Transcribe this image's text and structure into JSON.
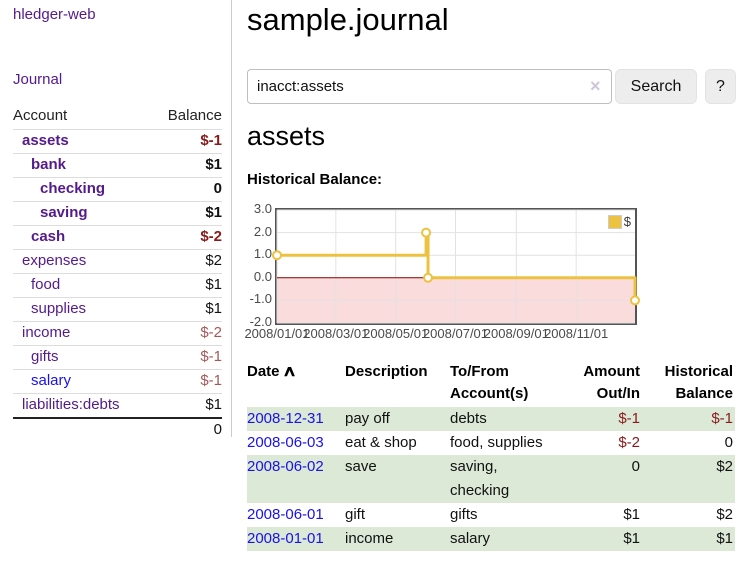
{
  "app": {
    "brand": "hledger-web",
    "nav_journal": "Journal"
  },
  "colors": {
    "link_purple": "#551a8b",
    "link_blue": "#1a12e8",
    "negative_strong": "#8b1a1a",
    "negative_soft": "#a85757",
    "row_green": "#dbe9d6",
    "chart_line": "#edc240",
    "chart_negative_fill": "#fbdcdc",
    "chart_zero_line": "#8b0000"
  },
  "sidebar": {
    "header": {
      "account": "Account",
      "balance": "Balance"
    },
    "accounts": [
      {
        "name": "assets",
        "indent": 1,
        "bold": true,
        "balance": "$-1",
        "neg": "strong",
        "link_color": "purple"
      },
      {
        "name": "bank",
        "indent": 2,
        "bold": true,
        "balance": "$1",
        "neg": "none",
        "link_color": "purple"
      },
      {
        "name": "checking",
        "indent": 3,
        "bold": true,
        "balance": "0",
        "neg": "none",
        "link_color": "purple"
      },
      {
        "name": "saving",
        "indent": 3,
        "bold": true,
        "balance": "$1",
        "neg": "none",
        "link_color": "purple"
      },
      {
        "name": "cash",
        "indent": 2,
        "bold": true,
        "balance": "$-2",
        "neg": "strong",
        "link_color": "purple"
      },
      {
        "name": "expenses",
        "indent": 1,
        "bold": false,
        "balance": "$2",
        "neg": "none",
        "link_color": "purple"
      },
      {
        "name": "food",
        "indent": 2,
        "bold": false,
        "balance": "$1",
        "neg": "none",
        "link_color": "purple"
      },
      {
        "name": "supplies",
        "indent": 2,
        "bold": false,
        "balance": "$1",
        "neg": "none",
        "link_color": "purple"
      },
      {
        "name": "income",
        "indent": 1,
        "bold": false,
        "balance": "$-2",
        "neg": "soft",
        "link_color": "purple"
      },
      {
        "name": "gifts",
        "indent": 2,
        "bold": false,
        "balance": "$-1",
        "neg": "soft",
        "link_color": "purple"
      },
      {
        "name": "salary",
        "indent": 2,
        "bold": false,
        "balance": "$-1",
        "neg": "soft",
        "link_color": "blue"
      },
      {
        "name": "liabilities:debts",
        "indent": 1,
        "bold": false,
        "balance": "$1",
        "neg": "none",
        "link_color": "purple"
      }
    ],
    "total": "0"
  },
  "header": {
    "title": "sample.journal"
  },
  "search": {
    "value": "inacct:assets",
    "clear_icon": "×",
    "button": "Search",
    "help_button": "?"
  },
  "account_page": {
    "title": "assets",
    "chart_label": "Historical Balance:"
  },
  "chart_data": {
    "type": "line",
    "title": "Historical Balance",
    "step": true,
    "series": [
      {
        "name": "$",
        "color": "#edc240",
        "points": [
          [
            "2008-01-01",
            1
          ],
          [
            "2008-06-01",
            2
          ],
          [
            "2008-06-03",
            0
          ],
          [
            "2008-12-31",
            -1
          ]
        ]
      }
    ],
    "xlim": [
      "2008-01-01",
      "2008-12-31"
    ],
    "ylim": [
      -2,
      3
    ],
    "y_ticks": [
      3.0,
      2.0,
      1.0,
      0.0,
      -1.0,
      -2.0
    ],
    "y_tick_labels": [
      "3.0",
      "2.0",
      "1.0",
      "0.0",
      "-1.0",
      "-2.0"
    ],
    "x_ticks": [
      "2008-01-01",
      "2008-03-01",
      "2008-05-01",
      "2008-07-01",
      "2008-09-01",
      "2008-11-01"
    ],
    "x_tick_labels": [
      "2008/01/01",
      "2008/03/01",
      "2008/05/01",
      "2008/07/01",
      "2008/09/01",
      "2008/11/01"
    ],
    "legend": [
      "$"
    ],
    "legend_position": "top-right",
    "grid": true,
    "negative_region_fill": "#fbdcdc",
    "zero_line_color": "#8b0000"
  },
  "register": {
    "sort_icon": "∧",
    "columns": [
      "Date",
      "Description",
      "To/From Account(s)",
      "Amount Out/In",
      "Historical Balance"
    ],
    "rows": [
      {
        "date": "2008-12-31",
        "description": "pay off",
        "accounts": "debts",
        "amount": "$-1",
        "amount_neg": true,
        "balance": "$-1",
        "balance_neg": true
      },
      {
        "date": "2008-06-03",
        "description": "eat & shop",
        "accounts": "food, supplies",
        "amount": "$-2",
        "amount_neg": true,
        "balance": "0",
        "balance_neg": false
      },
      {
        "date": "2008-06-02",
        "description": "save",
        "accounts": "saving, checking",
        "amount": "0",
        "amount_neg": false,
        "balance": "$2",
        "balance_neg": false
      },
      {
        "date": "2008-06-01",
        "description": "gift",
        "accounts": "gifts",
        "amount": "$1",
        "amount_neg": false,
        "balance": "$2",
        "balance_neg": false
      },
      {
        "date": "2008-01-01",
        "description": "income",
        "accounts": "salary",
        "amount": "$1",
        "amount_neg": false,
        "balance": "$1",
        "balance_neg": false
      }
    ]
  }
}
